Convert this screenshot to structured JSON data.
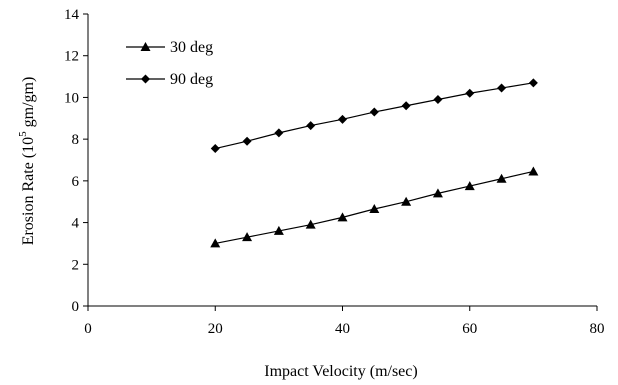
{
  "chart_data": {
    "type": "line",
    "xlabel": "Impact Velocity (m/sec)",
    "ylabel": {
      "prefix": "Erosion Rate (10",
      "superscript": "5",
      "suffix": " gm/gm)"
    },
    "xlim": [
      0,
      80
    ],
    "ylim": [
      0,
      14
    ],
    "xticks": [
      "0",
      "20",
      "40",
      "60",
      "80"
    ],
    "yticks": [
      "0",
      "2",
      "4",
      "6",
      "8",
      "10",
      "12",
      "14"
    ],
    "grid": false,
    "legend_position": "top-left",
    "x": [
      20,
      25,
      30,
      35,
      40,
      45,
      50,
      55,
      60,
      65,
      70
    ],
    "series": [
      {
        "name": "30 deg",
        "marker": "triangle",
        "color": "#000000",
        "values": [
          3.0,
          3.3,
          3.6,
          3.9,
          4.25,
          4.65,
          5.0,
          5.4,
          5.75,
          6.1,
          6.45
        ]
      },
      {
        "name": "90 deg",
        "marker": "diamond",
        "color": "#000000",
        "values": [
          7.55,
          7.9,
          8.3,
          8.65,
          8.95,
          9.3,
          9.6,
          9.9,
          10.2,
          10.45,
          10.7
        ]
      }
    ]
  }
}
